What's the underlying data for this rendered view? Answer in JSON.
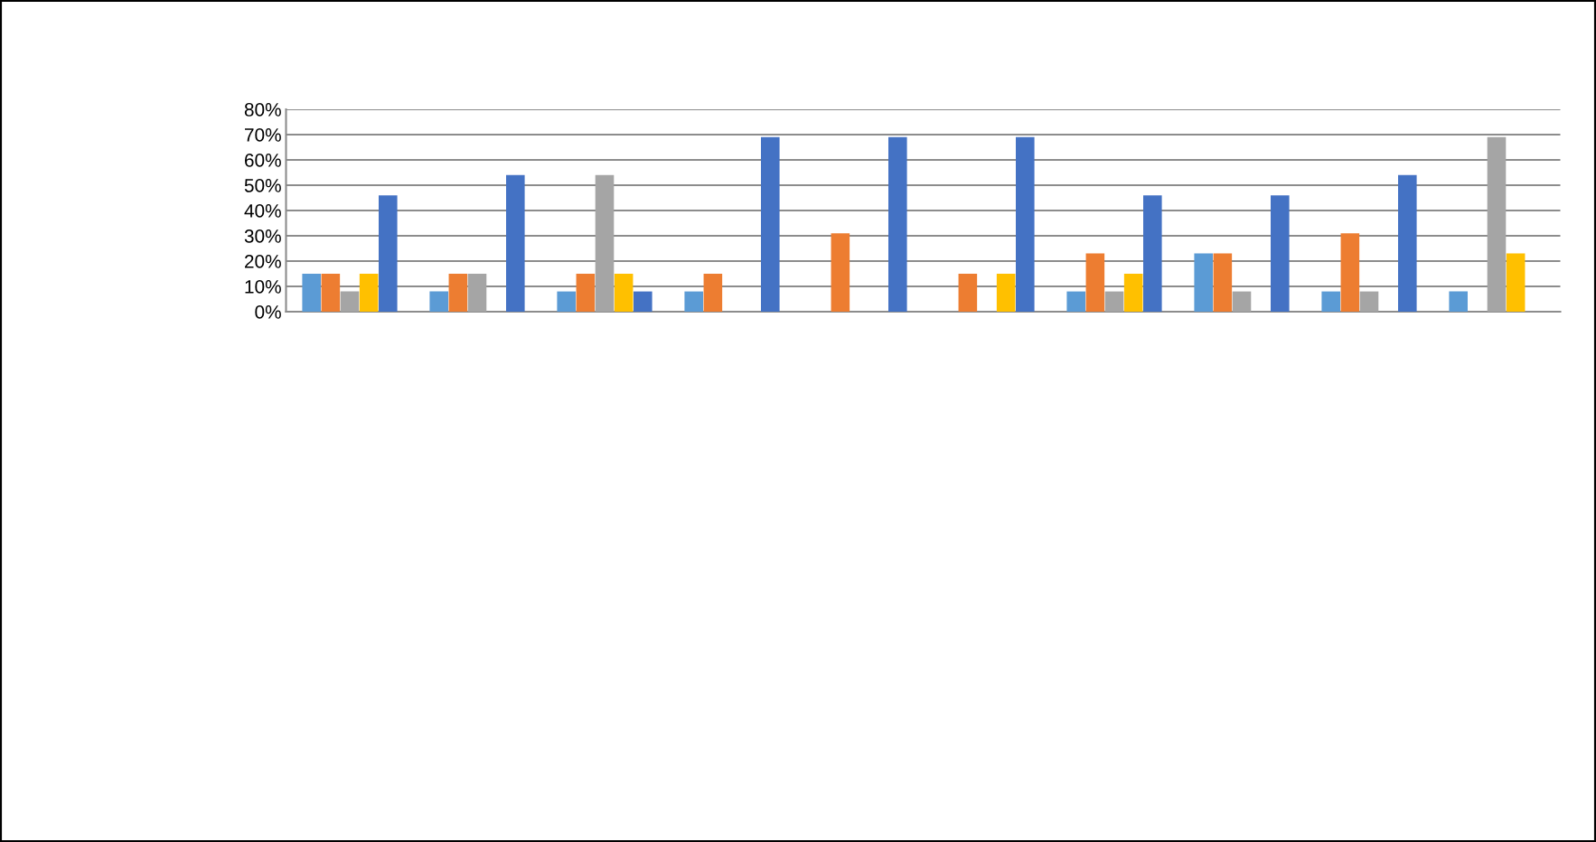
{
  "chart_data": {
    "type": "bar",
    "categories": [
      null,
      null,
      null,
      null,
      null,
      null,
      null,
      null,
      null,
      null
    ],
    "series": [
      {
        "color": "#5b9bd5",
        "values": [
          15,
          8,
          8,
          8,
          null,
          null,
          8,
          23,
          8,
          8
        ]
      },
      {
        "color": "#ed7d31",
        "values": [
          15,
          15,
          15,
          15,
          31,
          15,
          23,
          23,
          31,
          0
        ]
      },
      {
        "color": "#a5a5a5",
        "values": [
          8,
          15,
          54,
          null,
          null,
          null,
          8,
          8,
          8,
          69
        ]
      },
      {
        "color": "#ffc000",
        "values": [
          15,
          null,
          15,
          null,
          0,
          15,
          15,
          0,
          0,
          23
        ]
      },
      {
        "color": "#4472c4",
        "values": [
          46,
          54,
          8,
          69,
          69,
          69,
          46,
          46,
          54,
          0
        ]
      }
    ],
    "ylim": [
      0,
      80
    ],
    "yticks": [
      {
        "value": 0,
        "label": "0%"
      },
      {
        "value": 10,
        "label": "10%"
      },
      {
        "value": 20,
        "label": "20%"
      },
      {
        "value": 30,
        "label": "30%"
      },
      {
        "value": 40,
        "label": "40%"
      },
      {
        "value": 50,
        "label": "50%"
      },
      {
        "value": 60,
        "label": "60%"
      },
      {
        "value": 70,
        "label": "70%"
      },
      {
        "value": 80,
        "label": "80%"
      }
    ],
    "grid": "y"
  }
}
